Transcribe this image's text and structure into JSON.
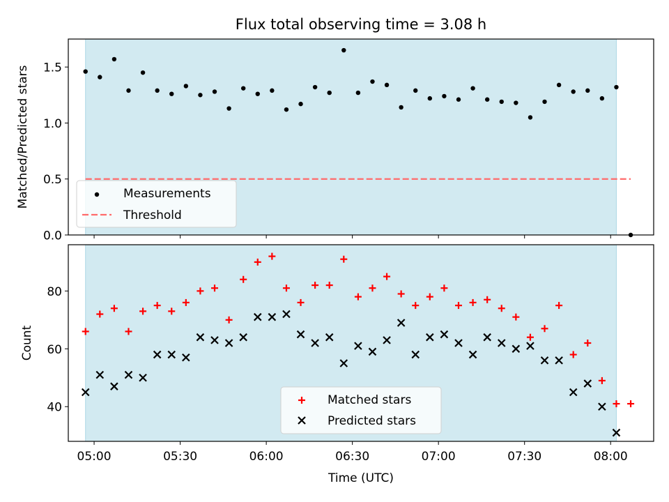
{
  "title": "Flux total observing time = 3.08 h",
  "colors": {
    "shade": "#add8e6",
    "measurement": "#000000",
    "threshold": "#ff6b6b",
    "matched": "#ff0000",
    "predicted": "#000000"
  },
  "chart_data": [
    {
      "type": "scatter",
      "ylabel": "Matched/Predicted stars",
      "ylim": [
        0,
        1.75
      ],
      "yticks": [
        0.0,
        0.5,
        1.0,
        1.5
      ],
      "ytick_labels": [
        "0.0",
        "0.5",
        "1.0",
        "1.5"
      ],
      "observing_window": [
        "04:57",
        "08:02"
      ],
      "legend": {
        "placement": "lower-left",
        "entries": [
          "Measurements",
          "Threshold"
        ]
      },
      "series": [
        {
          "name": "Measurements",
          "marker": "dot",
          "x": [
            "04:57",
            "05:02",
            "05:07",
            "05:12",
            "05:17",
            "05:22",
            "05:27",
            "05:32",
            "05:37",
            "05:42",
            "05:47",
            "05:52",
            "05:57",
            "06:02",
            "06:07",
            "06:12",
            "06:17",
            "06:22",
            "06:27",
            "06:32",
            "06:37",
            "06:42",
            "06:47",
            "06:52",
            "06:57",
            "07:02",
            "07:07",
            "07:12",
            "07:17",
            "07:22",
            "07:27",
            "07:32",
            "07:37",
            "07:42",
            "07:47",
            "07:52",
            "07:57",
            "08:02",
            "08:07"
          ],
          "y": [
            1.46,
            1.41,
            1.57,
            1.29,
            1.45,
            1.29,
            1.26,
            1.33,
            1.25,
            1.28,
            1.13,
            1.31,
            1.26,
            1.29,
            1.12,
            1.17,
            1.32,
            1.27,
            1.65,
            1.27,
            1.37,
            1.34,
            1.14,
            1.29,
            1.22,
            1.24,
            1.21,
            1.31,
            1.21,
            1.19,
            1.18,
            1.05,
            1.19,
            1.34,
            1.28,
            1.29,
            1.22,
            1.32,
            0.0
          ]
        },
        {
          "name": "Threshold",
          "marker": "dashed-line",
          "x": [
            "04:57",
            "08:07"
          ],
          "y": [
            0.5,
            0.5
          ]
        }
      ]
    },
    {
      "type": "scatter",
      "xlabel": "Time (UTC)",
      "ylabel": "Count",
      "ylim": [
        28,
        96
      ],
      "yticks": [
        40,
        60,
        80
      ],
      "ytick_labels": [
        "40",
        "60",
        "80"
      ],
      "xticks": [
        "05:00",
        "05:30",
        "06:00",
        "06:30",
        "07:00",
        "07:30",
        "08:00"
      ],
      "xlim": [
        "04:51",
        "08:15"
      ],
      "observing_window": [
        "04:57",
        "08:02"
      ],
      "legend": {
        "placement": "lower-center",
        "entries": [
          "Matched stars",
          "Predicted stars"
        ]
      },
      "series": [
        {
          "name": "Matched stars",
          "marker": "plus",
          "x": [
            "04:57",
            "05:02",
            "05:07",
            "05:12",
            "05:17",
            "05:22",
            "05:27",
            "05:32",
            "05:37",
            "05:42",
            "05:47",
            "05:52",
            "05:57",
            "06:02",
            "06:07",
            "06:12",
            "06:17",
            "06:22",
            "06:27",
            "06:32",
            "06:37",
            "06:42",
            "06:47",
            "06:52",
            "06:57",
            "07:02",
            "07:07",
            "07:12",
            "07:17",
            "07:22",
            "07:27",
            "07:32",
            "07:37",
            "07:42",
            "07:47",
            "07:52",
            "07:57",
            "08:02",
            "08:07"
          ],
          "y": [
            66,
            72,
            74,
            66,
            73,
            75,
            73,
            76,
            80,
            81,
            70,
            84,
            90,
            92,
            81,
            76,
            82,
            82,
            91,
            78,
            81,
            85,
            79,
            75,
            78,
            81,
            75,
            76,
            77,
            74,
            71,
            64,
            67,
            75,
            58,
            62,
            49,
            41,
            41
          ]
        },
        {
          "name": "Predicted stars",
          "marker": "x",
          "x": [
            "04:57",
            "05:02",
            "05:07",
            "05:12",
            "05:17",
            "05:22",
            "05:27",
            "05:32",
            "05:37",
            "05:42",
            "05:47",
            "05:52",
            "05:57",
            "06:02",
            "06:07",
            "06:12",
            "06:17",
            "06:22",
            "06:27",
            "06:32",
            "06:37",
            "06:42",
            "06:47",
            "06:52",
            "06:57",
            "07:02",
            "07:07",
            "07:12",
            "07:17",
            "07:22",
            "07:27",
            "07:32",
            "07:37",
            "07:42",
            "07:47",
            "07:52",
            "07:57",
            "08:02"
          ],
          "y": [
            45,
            51,
            47,
            51,
            50,
            58,
            58,
            57,
            64,
            63,
            62,
            64,
            71,
            71,
            72,
            65,
            62,
            64,
            55,
            61,
            59,
            63,
            69,
            58,
            64,
            65,
            62,
            58,
            64,
            62,
            60,
            61,
            56,
            56,
            45,
            48,
            40,
            31
          ]
        }
      ]
    }
  ]
}
